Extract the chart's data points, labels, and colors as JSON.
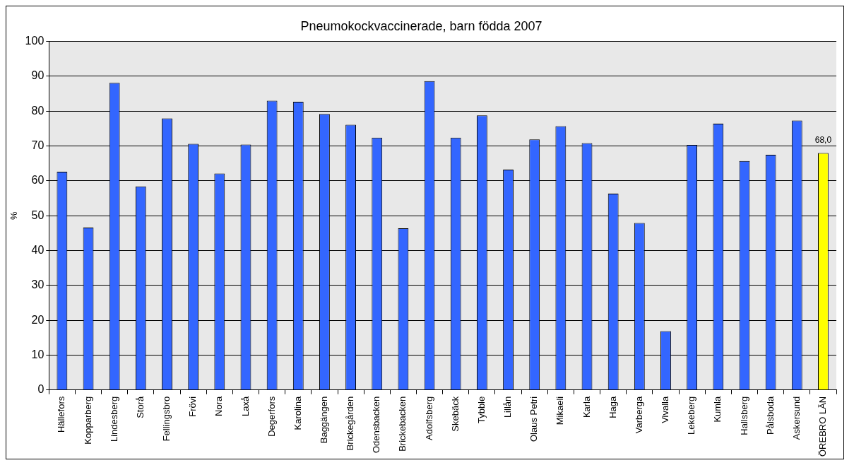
{
  "chart_data": {
    "type": "bar",
    "title": "Pneumokockvaccinerade, barn födda 2007",
    "ylabel": "%",
    "categories": [
      "Hällefors",
      "Kopparberg",
      "Lindesberg",
      "Storå",
      "Fellingsbro",
      "Frövi",
      "Nora",
      "Laxå",
      "Degerfors",
      "Karolina",
      "Baggängen",
      "Brickegården",
      "Odensbacken",
      "Brickebacken",
      "Adolfsberg",
      "Skebäck",
      "Tybble",
      "Lillån",
      "Olaus Petri",
      "Mikaeli",
      "Karla",
      "Haga",
      "Varberga",
      "Vivalla",
      "Lekeberg",
      "Kumla",
      "Hallsberg",
      "Pålsboda",
      "Askersund",
      "ÖREBRO LÄN"
    ],
    "values": [
      62.6,
      46.6,
      88.1,
      58.4,
      77.9,
      70.6,
      62.1,
      70.4,
      83.0,
      82.7,
      79.2,
      76.1,
      72.4,
      46.4,
      88.6,
      72.4,
      78.8,
      63.2,
      71.9,
      75.7,
      70.8,
      56.3,
      47.9,
      16.9,
      70.3,
      76.4,
      65.7,
      67.5,
      77.3,
      68.0
    ],
    "colors": [
      "#3366ff",
      "#3366ff",
      "#3366ff",
      "#3366ff",
      "#3366ff",
      "#3366ff",
      "#3366ff",
      "#3366ff",
      "#3366ff",
      "#3366ff",
      "#3366ff",
      "#3366ff",
      "#3366ff",
      "#3366ff",
      "#3366ff",
      "#3366ff",
      "#3366ff",
      "#3366ff",
      "#3366ff",
      "#3366ff",
      "#3366ff",
      "#3366ff",
      "#3366ff",
      "#3366ff",
      "#3366ff",
      "#3366ff",
      "#3366ff",
      "#3366ff",
      "#3366ff",
      "#ffff00"
    ],
    "value_labels": [
      null,
      null,
      null,
      null,
      null,
      null,
      null,
      null,
      null,
      null,
      null,
      null,
      null,
      null,
      null,
      null,
      null,
      null,
      null,
      null,
      null,
      null,
      null,
      null,
      null,
      null,
      null,
      null,
      null,
      "68,0"
    ],
    "ylim": [
      0,
      100
    ],
    "yticks": [
      0,
      10,
      20,
      30,
      40,
      50,
      60,
      70,
      80,
      90,
      100
    ],
    "grid": "y",
    "legend": false
  }
}
